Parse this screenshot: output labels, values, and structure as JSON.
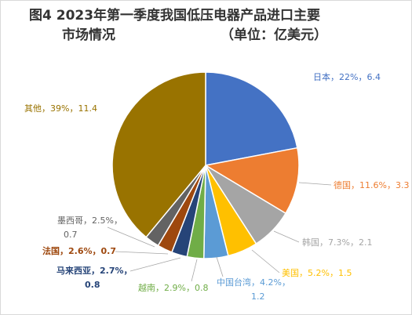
{
  "title": {
    "line1": "图4  2023年第一季度我国低压电器产品进口主要",
    "line2": "市场情况",
    "unit": "（单位：亿美元）"
  },
  "chart_data": {
    "type": "pie",
    "title": "图4  2023年第一季度我国低压电器产品进口主要市场情况（单位：亿美元）",
    "unit": "亿美元",
    "slices": [
      {
        "name": "日本",
        "percent": "22%",
        "value": 6.4,
        "color": "#4472C4"
      },
      {
        "name": "德国",
        "percent": "11.6%",
        "value": 3.3,
        "color": "#ED7D31"
      },
      {
        "name": "韩国",
        "percent": "7.3%",
        "value": 2.1,
        "color": "#A5A5A5"
      },
      {
        "name": "美国",
        "percent": "5.2%",
        "value": 1.5,
        "color": "#FFC000"
      },
      {
        "name": "中国台湾",
        "percent": "4.2%",
        "value": 1.2,
        "color": "#5B9BD5"
      },
      {
        "name": "越南",
        "percent": "2.9%",
        "value": 0.8,
        "color": "#70AD47"
      },
      {
        "name": "马来西亚",
        "percent": "2.7%",
        "value": 0.8,
        "color": "#264478"
      },
      {
        "name": "法国",
        "percent": "2.6%",
        "value": 0.7,
        "color": "#9E480E"
      },
      {
        "name": "墨西哥",
        "percent": "2.5%",
        "value": 0.7,
        "color": "#636363"
      },
      {
        "name": "其他",
        "percent": "39%",
        "value": 11.4,
        "color": "#997300"
      }
    ],
    "labels": [
      {
        "lines": [
          "日本，22%，6.4"
        ],
        "color": "#4472C4"
      },
      {
        "lines": [
          "德国，11.6%，3.3"
        ],
        "color": "#ED7D31"
      },
      {
        "lines": [
          "韩国，7.3%，2.1"
        ],
        "color": "#A5A5A5"
      },
      {
        "lines": [
          "美国，5.2%，1.5"
        ],
        "color": "#FFC000"
      },
      {
        "lines": [
          "中国台湾，4.2%，",
          "1.2"
        ],
        "color": "#5B9BD5"
      },
      {
        "lines": [
          "越南，2.9%，0.8"
        ],
        "color": "#70AD47"
      },
      {
        "lines": [
          "马来西亚，2.7%，",
          "0.8"
        ],
        "color": "#264478"
      },
      {
        "lines": [
          "法国，2.6%，0.7"
        ],
        "color": "#9E480E"
      },
      {
        "lines": [
          "墨西哥，2.5%，",
          "0.7"
        ],
        "color": "#636363"
      },
      {
        "lines": [
          "其他，39%，11.4"
        ],
        "color": "#997300"
      }
    ]
  }
}
